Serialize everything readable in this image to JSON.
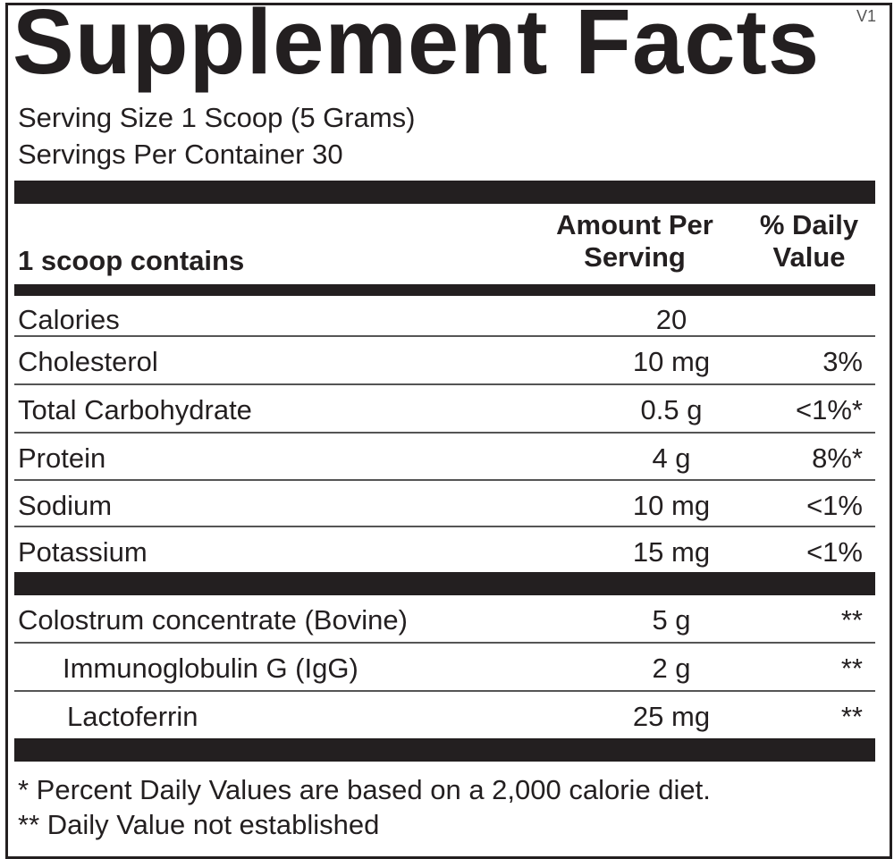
{
  "title": "Supplement Facts",
  "version": "V1",
  "serving_size": "Serving Size 1 Scoop (5 Grams)",
  "servings_per_container": "Servings Per Container 30",
  "header": {
    "label": "1 scoop contains",
    "amount": "Amount Per Serving",
    "dv": "% Daily Value"
  },
  "nutrients": [
    {
      "name": "Calories",
      "amount": "20",
      "dv": ""
    },
    {
      "name": "Cholesterol",
      "amount": "10 mg",
      "dv": "3%"
    },
    {
      "name": "Total Carbohydrate",
      "amount": "0.5 g",
      "dv": "<1%*"
    },
    {
      "name": "Protein",
      "amount": "4 g",
      "dv": "8%*"
    },
    {
      "name": "Sodium",
      "amount": "10 mg",
      "dv": "<1%"
    },
    {
      "name": "Potassium",
      "amount": "15 mg",
      "dv": "<1%"
    }
  ],
  "ingredients": [
    {
      "name": "Colostrum concentrate (Bovine)",
      "amount": "5 g",
      "dv": "**"
    },
    {
      "name": "Immunoglobulin G (IgG)",
      "amount": "2 g",
      "dv": "**"
    },
    {
      "name": "Lactoferrin",
      "amount": "25 mg",
      "dv": "**"
    }
  ],
  "footnotes": [
    "* Percent Daily Values are based on a 2,000 calorie diet.",
    "** Daily Value not established"
  ]
}
